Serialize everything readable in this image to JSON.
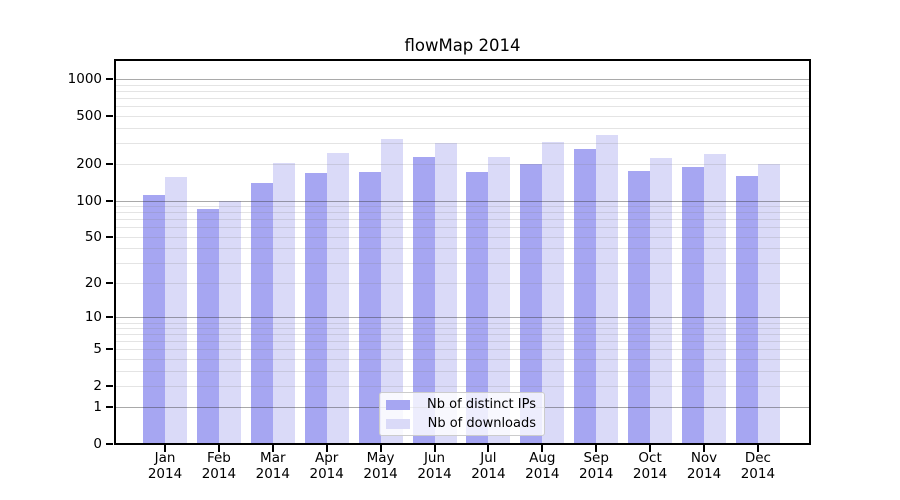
{
  "title": "flowMap 2014",
  "colors": {
    "distinct_ips": "#a6a6f2",
    "downloads": "#dadaf8",
    "frame": "#000000",
    "major_grid": "rgba(51,51,51,0.42)",
    "minor_grid": "rgba(130,130,130,0.22)",
    "legend_bg": "rgba(255,255,255,0.8)",
    "legend_border": "#cccccc"
  },
  "legend": {
    "items": [
      {
        "label": "Nb of distinct IPs",
        "color_key": "distinct_ips"
      },
      {
        "label": "Nb of downloads",
        "color_key": "downloads"
      }
    ]
  },
  "y_axis": {
    "ticks": [
      {
        "label": "1000",
        "value": 1000
      },
      {
        "label": "500",
        "value": 500
      },
      {
        "label": "200",
        "value": 200
      },
      {
        "label": "100",
        "value": 100
      },
      {
        "label": "50",
        "value": 50
      },
      {
        "label": "20",
        "value": 20
      },
      {
        "label": "10",
        "value": 10
      },
      {
        "label": "5",
        "value": 5
      },
      {
        "label": "2",
        "value": 2
      },
      {
        "label": "1",
        "value": 1
      },
      {
        "label": "0",
        "value": 0
      }
    ]
  },
  "x_axis": {
    "months": [
      "Jan",
      "Feb",
      "Mar",
      "Apr",
      "May",
      "Jun",
      "Jul",
      "Aug",
      "Sep",
      "Oct",
      "Nov",
      "Dec"
    ],
    "year": "2014"
  },
  "chart_data": {
    "type": "bar",
    "title": "flowMap 2014",
    "categories": [
      "Jan 2014",
      "Feb 2014",
      "Mar 2014",
      "Apr 2014",
      "May 2014",
      "Jun 2014",
      "Jul 2014",
      "Aug 2014",
      "Sep 2014",
      "Oct 2014",
      "Nov 2014",
      "Dec 2014"
    ],
    "series": [
      {
        "name": "Nb of distinct IPs",
        "color_key": "distinct_ips",
        "values": [
          111,
          85,
          140,
          170,
          173,
          230,
          173,
          200,
          265,
          175,
          190,
          160
        ]
      },
      {
        "name": "Nb of downloads",
        "color_key": "downloads",
        "values": [
          156,
          100,
          203,
          248,
          324,
          300,
          228,
          305,
          350,
          225,
          245,
          200
        ]
      }
    ],
    "yscale": "log1p",
    "y_ticks": [
      0,
      1,
      2,
      5,
      10,
      20,
      50,
      100,
      200,
      500,
      1000
    ],
    "ylim": [
      0,
      1450
    ],
    "grid": "horizontal major+minor",
    "legend_position": "inside lower-center"
  }
}
